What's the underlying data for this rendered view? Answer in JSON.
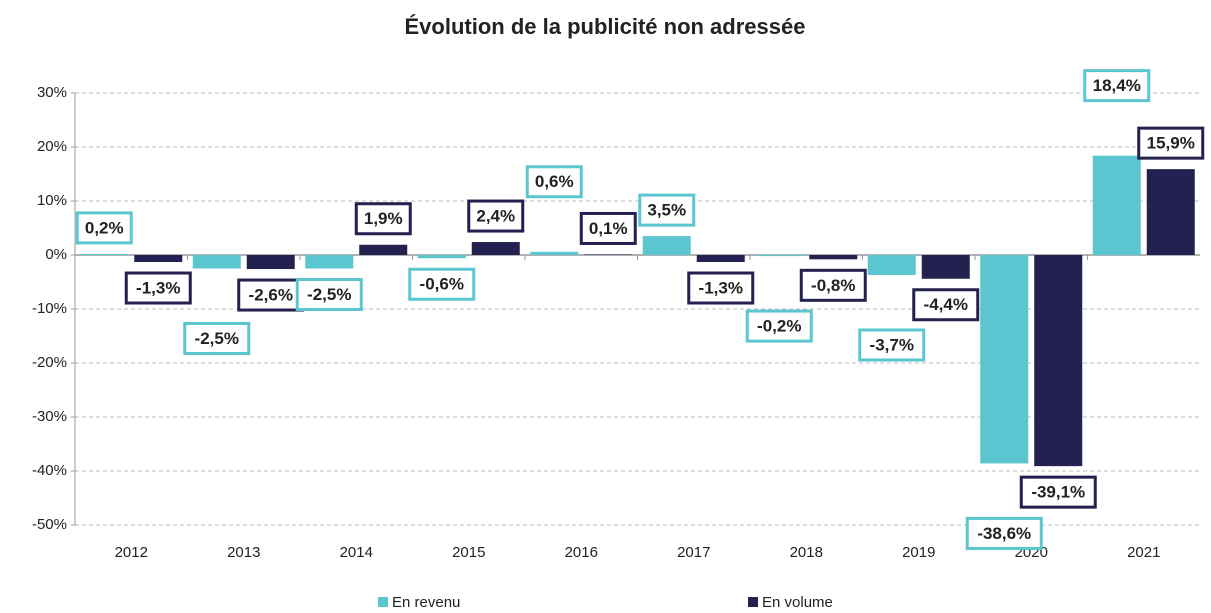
{
  "chart_data": {
    "type": "bar",
    "title": "Évolution de la publicité non adressée",
    "categories": [
      "2012",
      "2013",
      "2014",
      "2015",
      "2016",
      "2017",
      "2018",
      "2019",
      "2020",
      "2021"
    ],
    "series": [
      {
        "name": "En revenu",
        "color": "#5bc5d0",
        "values": [
          0.2,
          -2.5,
          -2.5,
          -0.6,
          0.6,
          3.5,
          -0.2,
          -3.7,
          -38.6,
          18.4
        ],
        "value_labels": [
          "0,2%",
          "-2,5%",
          "-2,5%",
          "-0,6%",
          "0,6%",
          "3,5%",
          "-0,2%",
          "-3,7%",
          "-38,6%",
          "18,4%"
        ]
      },
      {
        "name": "En volume",
        "color": "#23214f",
        "values": [
          -1.3,
          -2.6,
          1.9,
          2.4,
          0.1,
          -1.3,
          -0.8,
          -4.4,
          -39.1,
          15.9
        ],
        "value_labels": [
          "-1,3%",
          "-2,6%",
          "1,9%",
          "2,4%",
          "0,1%",
          "-1,3%",
          "-0,8%",
          "-4,4%",
          "-39,1%",
          "15,9%"
        ]
      }
    ],
    "ylim": [
      -50,
      30
    ],
    "yticks": [
      {
        "value": -50,
        "label": "-50%"
      },
      {
        "value": -40,
        "label": "-40%"
      },
      {
        "value": -30,
        "label": "-30%"
      },
      {
        "value": -20,
        "label": "-20%"
      },
      {
        "value": -10,
        "label": "-10%"
      },
      {
        "value": 0,
        "label": "0%"
      },
      {
        "value": 10,
        "label": "10%"
      },
      {
        "value": 20,
        "label": "20%"
      },
      {
        "value": 30,
        "label": "30%"
      }
    ],
    "grid": true,
    "legend": "bottom"
  }
}
